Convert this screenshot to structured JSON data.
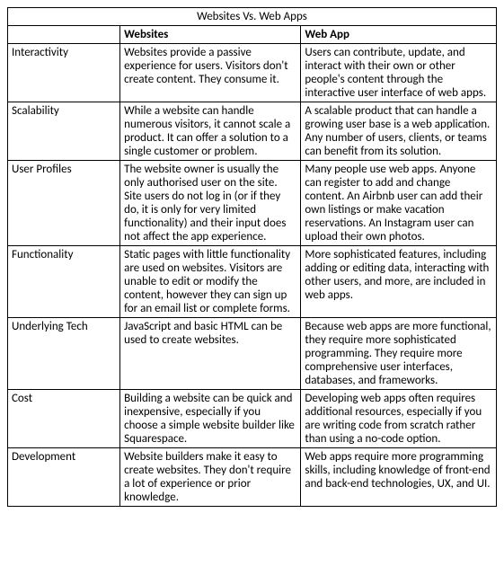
{
  "table": {
    "title": "Websites Vs. Web Apps",
    "columns": [
      "",
      "Websites",
      "Web App"
    ],
    "rows": [
      {
        "label": "Interactivity",
        "websites": "Websites provide a passive experience for users. Visitors don't create content. They consume it.",
        "webapp": "Users can contribute, update, and interact with their own or other people's content through the interactive user interface of web apps."
      },
      {
        "label": "Scalability",
        "websites": "While a website can handle numerous visitors, it cannot scale a product. It can offer a solution to a single customer or problem.",
        "webapp": "A scalable product that can handle a growing user base is a web application. Any number of users, clients, or teams can benefit from its solution."
      },
      {
        "label": "User Profiles",
        "websites": "The website owner is usually the only authorised user on the site. Site users do not log in (or if they do, it is only for very limited functionality) and their input does not affect the app experience.",
        "webapp": "Many people use web apps. Anyone can register to add and change content. An Airbnb user can add their own listings or make vacation reservations. An Instagram user can upload their own photos."
      },
      {
        "label": "Functionality",
        "websites": "Static pages with little functionality are used on websites. Visitors are unable to edit or modify the content, however they can sign up for an email list or complete forms.",
        "webapp": "More sophisticated features, including adding or editing data, interacting with other users, and more, are included in web apps."
      },
      {
        "label": "Underlying Tech",
        "websites": "JavaScript and basic HTML can be used to create websites.",
        "webapp": "Because web apps are more functional, they require more sophisticated programming. They require more comprehensive user interfaces, databases, and frameworks."
      },
      {
        "label": "Cost",
        "websites": "Building a website can be quick and inexpensive, especially if you choose a simple website builder like Squarespace.",
        "webapp": "Developing web apps often requires additional resources, especially if you are writing code from scratch rather than using a no-code option."
      },
      {
        "label": "Development",
        "websites": "Website builders make it easy to create websites. They don't require a lot of experience or prior knowledge.",
        "webapp": "Web apps require more programming skills, including knowledge of front-end and back-end technologies, UX, and UI."
      }
    ]
  }
}
